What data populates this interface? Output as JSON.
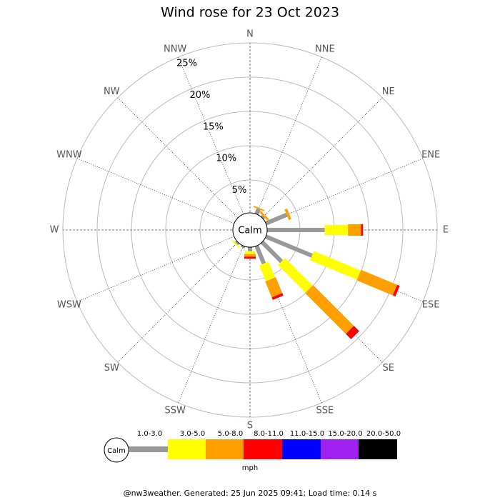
{
  "chart_data": {
    "type": "windrose",
    "title": "Wind rose for 23 Oct 2023",
    "calm_label": "Calm",
    "unit": "mph",
    "footer": "@nw3weather. Generated: 25 Jun 2025 09:41; Load time: 0.14 s",
    "categories": [
      "N",
      "NNE",
      "NE",
      "ENE",
      "E",
      "ESE",
      "SE",
      "SSE",
      "S",
      "SSW",
      "SW",
      "WSW",
      "W",
      "WNW",
      "NW",
      "NNW"
    ],
    "rlim": [
      0,
      25
    ],
    "rticks": [
      {
        "value": 5,
        "label": "5%"
      },
      {
        "value": 10,
        "label": "10%"
      },
      {
        "value": 15,
        "label": "15%"
      },
      {
        "value": 20,
        "label": "20%"
      },
      {
        "value": 25,
        "label": "25%"
      }
    ],
    "series": [
      {
        "name": "1.0-3.0",
        "color": "#999999",
        "values": [
          0,
          1.0,
          0.5,
          3.5,
          8.6,
          7.5,
          4.2,
          3.0,
          0.8,
          0.5,
          0.5,
          0,
          0,
          0,
          0,
          0
        ]
      },
      {
        "name": "3.0-5.0",
        "color": "#ffff00",
        "values": [
          0,
          0,
          0,
          0,
          3.4,
          7.4,
          5.7,
          2.5,
          0.4,
          0,
          0.2,
          0,
          0,
          0,
          0,
          0
        ]
      },
      {
        "name": "5.0-8.0",
        "color": "#ffa000",
        "values": [
          0,
          0.2,
          0.3,
          0.4,
          1.9,
          5.7,
          8.4,
          2.5,
          0.4,
          0,
          0,
          0,
          0,
          0,
          0,
          0
        ]
      },
      {
        "name": "8.0-11.0",
        "color": "#ff0000",
        "values": [
          0,
          0,
          0,
          0,
          0.3,
          0.4,
          1.1,
          0.4,
          0.3,
          0,
          0,
          0,
          0,
          0,
          0,
          0
        ]
      },
      {
        "name": "11.0-15.0",
        "color": "#0000ff",
        "values": [
          0,
          0,
          0,
          0,
          0,
          0,
          0,
          0,
          0,
          0,
          0,
          0,
          0,
          0,
          0,
          0
        ]
      },
      {
        "name": "15.0-20.0",
        "color": "#a020f0",
        "values": [
          0,
          0,
          0,
          0,
          0,
          0,
          0,
          0,
          0,
          0,
          0,
          0,
          0,
          0,
          0,
          0
        ]
      },
      {
        "name": "20.0-50.0",
        "color": "#000000",
        "values": [
          0,
          0,
          0,
          0,
          0,
          0,
          0,
          0,
          0,
          0,
          0,
          0,
          0,
          0,
          0,
          0
        ]
      }
    ]
  }
}
